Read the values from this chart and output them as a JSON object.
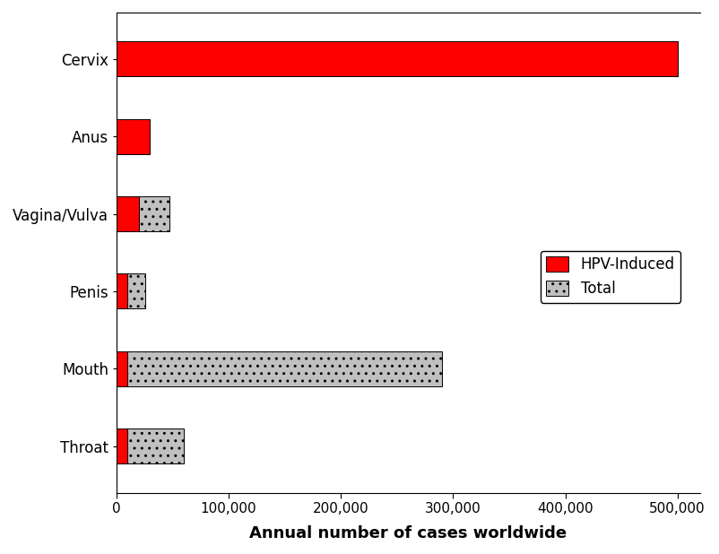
{
  "categories": [
    "Cervix",
    "Anus",
    "Vagina/Vulva",
    "Penis",
    "Mouth",
    "Throat"
  ],
  "hpv_induced": [
    500000,
    30000,
    20000,
    10000,
    10000,
    10000
  ],
  "total": [
    500000,
    30000,
    47000,
    26000,
    290000,
    60000
  ],
  "hpv_color": "#FF0000",
  "total_color": "#C0C0C0",
  "xlabel": "Annual number of cases worldwide",
  "xlim": [
    0,
    520000
  ],
  "xticks": [
    0,
    100000,
    200000,
    300000,
    400000,
    500000
  ],
  "xtick_labels": [
    "0",
    "100,000",
    "200,000",
    "300,000",
    "400,000",
    "500,000"
  ],
  "legend_hpv": "HPV-Induced",
  "legend_total": "Total",
  "bar_height": 0.45,
  "figsize": [
    8.02,
    6.18
  ],
  "dpi": 100,
  "background_color": "#FFFFFF"
}
